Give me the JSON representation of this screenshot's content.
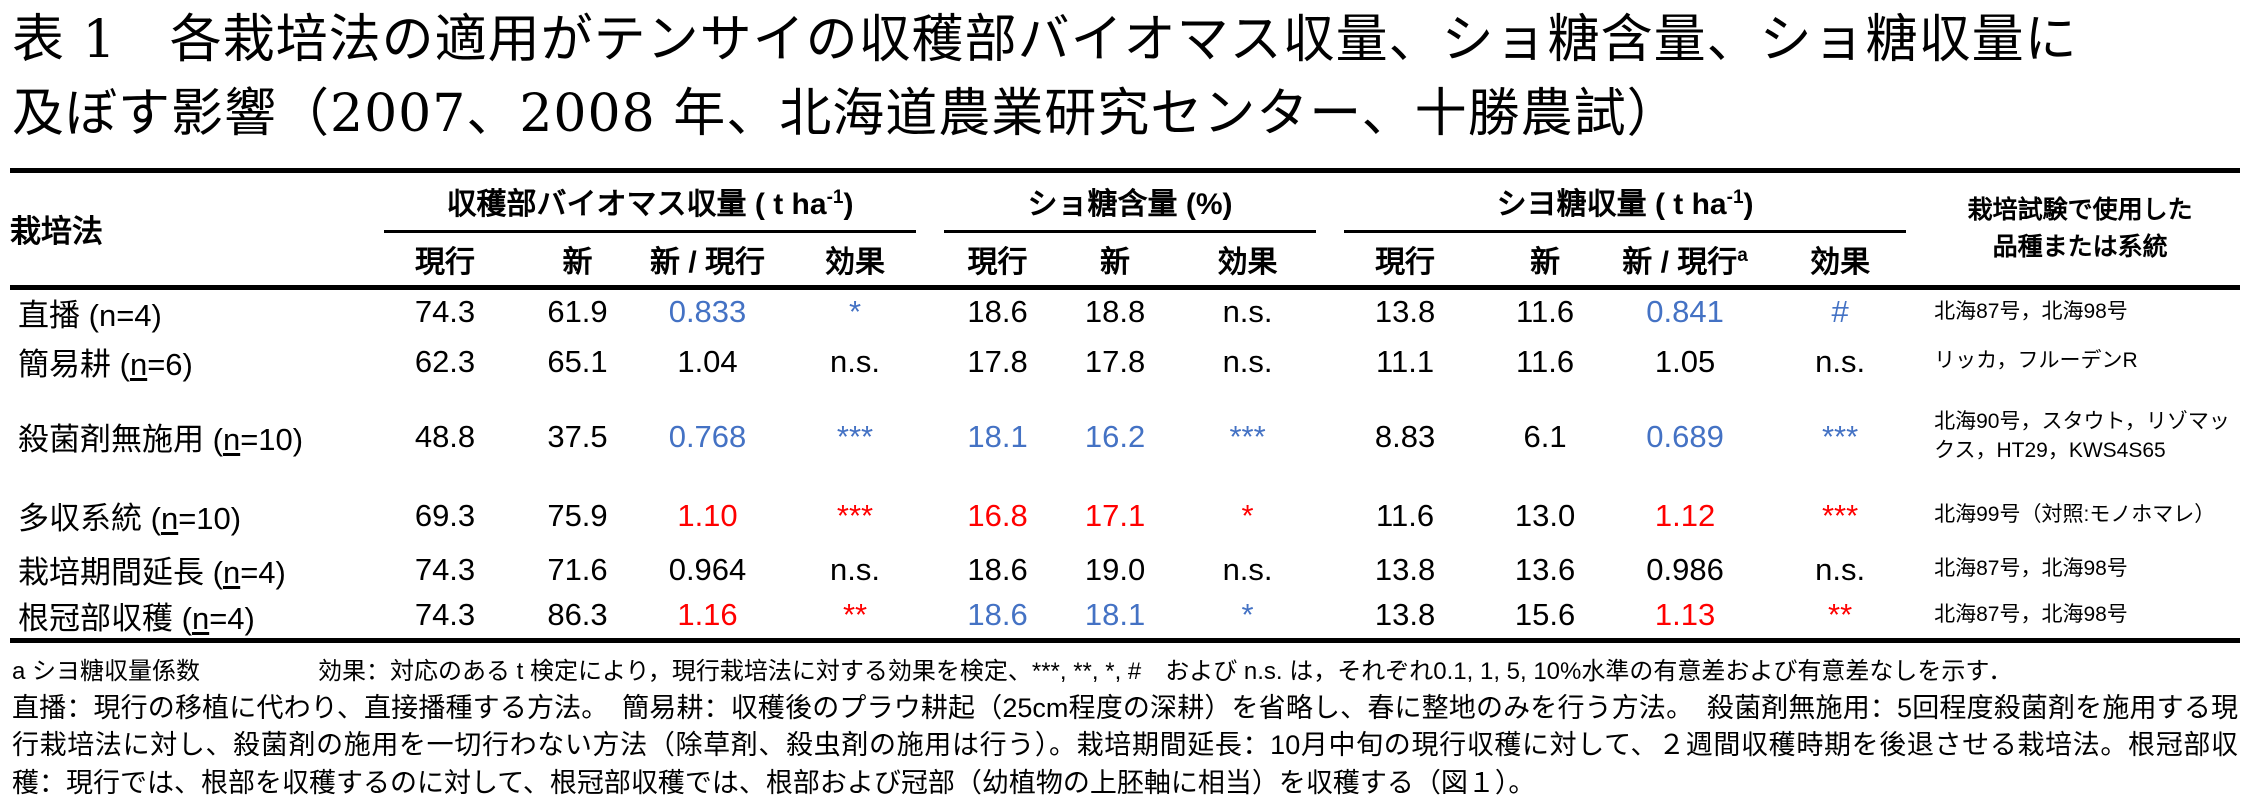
{
  "colors": {
    "blue": "#4472C4",
    "red": "#FF0000",
    "text": "#000000",
    "background": "#FFFFFF"
  },
  "title": {
    "line1": "表 1　各栽培法の適用がテンサイの収穫部バイオマス収量、ショ糖含量、ショ糖収量に",
    "line2": "及ぼす影響（2007、2008 年、北海道農業研究センター、十勝農試）"
  },
  "table": {
    "method_header": "栽培法",
    "groups": [
      {
        "label": "収穫部バイオマス収量 ( t  ha",
        "sup": "-1",
        "close": ")"
      },
      {
        "label": "ショ糖含量 (%)",
        "sup": "",
        "close": ""
      },
      {
        "label": "シヨ糖収量 ( t  ha",
        "sup": "-1",
        "close": ")"
      }
    ],
    "sub": [
      {
        "t": "現行"
      },
      {
        "t": "新"
      },
      {
        "t": "新 / 現行"
      },
      {
        "t": "効果"
      },
      {
        "t": "現行"
      },
      {
        "t": "新"
      },
      {
        "t": "効果"
      },
      {
        "t": "現行"
      },
      {
        "t": "新"
      },
      {
        "t": "新 / 現行",
        "sup": "a"
      },
      {
        "t": "効果"
      }
    ],
    "cultivar_header": {
      "line1": "栽培試験で使用した",
      "line2": "品種または系統"
    },
    "rows": [
      {
        "method_pre": "直播 (",
        "method_n": "n",
        "method_post": "=4)",
        "n_underlined": false,
        "cells": [
          {
            "v": "74.3"
          },
          {
            "v": "61.9"
          },
          {
            "v": "0.833",
            "c": "blue"
          },
          {
            "v": "*",
            "c": "blue"
          },
          {
            "v": "18.6"
          },
          {
            "v": "18.8"
          },
          {
            "v": "n.s."
          },
          {
            "v": "13.8"
          },
          {
            "v": "11.6"
          },
          {
            "v": "0.841",
            "c": "blue"
          },
          {
            "v": "#",
            "c": "blue"
          }
        ],
        "cultivar": "北海87号，北海98号"
      },
      {
        "method_pre": "簡易耕 (",
        "method_n": "n",
        "method_post": "=6)",
        "n_underlined": true,
        "cells": [
          {
            "v": "62.3"
          },
          {
            "v": "65.1"
          },
          {
            "v": "1.04"
          },
          {
            "v": "n.s."
          },
          {
            "v": "17.8"
          },
          {
            "v": "17.8"
          },
          {
            "v": "n.s."
          },
          {
            "v": "11.1"
          },
          {
            "v": "11.6"
          },
          {
            "v": "1.05"
          },
          {
            "v": "n.s."
          }
        ],
        "cultivar": "リッカ，フルーデンR"
      },
      {
        "method_pre": "殺菌剤無施用 (",
        "method_n": "n",
        "method_post": "=10)",
        "n_underlined": true,
        "cells": [
          {
            "v": "48.8"
          },
          {
            "v": "37.5"
          },
          {
            "v": "0.768",
            "c": "blue"
          },
          {
            "v": "***",
            "c": "blue"
          },
          {
            "v": "18.1",
            "c": "blue"
          },
          {
            "v": "16.2",
            "c": "blue"
          },
          {
            "v": "***",
            "c": "blue"
          },
          {
            "v": "8.83"
          },
          {
            "v": "6.1"
          },
          {
            "v": "0.689",
            "c": "blue"
          },
          {
            "v": "***",
            "c": "blue"
          }
        ],
        "cultivar": "北海90号，スタウト，リゾマックス，HT29，KWS4S65"
      },
      {
        "method_pre": "多収系統 (",
        "method_n": "n",
        "method_post": "=10)",
        "n_underlined": true,
        "cells": [
          {
            "v": "69.3"
          },
          {
            "v": "75.9"
          },
          {
            "v": "1.10",
            "c": "red"
          },
          {
            "v": "***",
            "c": "red"
          },
          {
            "v": "16.8",
            "c": "red"
          },
          {
            "v": "17.1",
            "c": "red"
          },
          {
            "v": "*",
            "c": "red"
          },
          {
            "v": "11.6"
          },
          {
            "v": "13.0"
          },
          {
            "v": "1.12",
            "c": "red"
          },
          {
            "v": "***",
            "c": "red"
          }
        ],
        "cultivar": "北海99号（対照:モノホマレ）"
      },
      {
        "method_pre": "栽培期間延長 (",
        "method_n": "n",
        "method_post": "=4)",
        "n_underlined": true,
        "cells": [
          {
            "v": "74.3"
          },
          {
            "v": "71.6"
          },
          {
            "v": "0.964"
          },
          {
            "v": "n.s."
          },
          {
            "v": "18.6"
          },
          {
            "v": "19.0"
          },
          {
            "v": "n.s."
          },
          {
            "v": "13.8"
          },
          {
            "v": "13.6"
          },
          {
            "v": "0.986"
          },
          {
            "v": "n.s."
          }
        ],
        "cultivar": "北海87号，北海98号"
      },
      {
        "method_pre": "根冠部収穫 (",
        "method_n": "n",
        "method_post": "=4)",
        "n_underlined": true,
        "cells": [
          {
            "v": "74.3"
          },
          {
            "v": "86.3"
          },
          {
            "v": "1.16",
            "c": "red"
          },
          {
            "v": "**",
            "c": "red"
          },
          {
            "v": "18.6",
            "c": "blue"
          },
          {
            "v": "18.1",
            "c": "blue"
          },
          {
            "v": "*",
            "c": "blue"
          },
          {
            "v": "13.8"
          },
          {
            "v": "15.6"
          },
          {
            "v": "1.13",
            "c": "red"
          },
          {
            "v": "**",
            "c": "red"
          }
        ],
        "cultivar": "北海87号，北海98号"
      }
    ]
  },
  "footnotes": {
    "coef": "a シヨ糖収量係数",
    "effect": "効果：対応のある t 検定により，現行栽培法に対する効果を検定、***, **, *, #　および n.s. は，それぞれ0.1, 1, 5, 10%水準の有意差および有意差なしを示す．",
    "body": "直播：現行の移植に代わり、直接播種する方法。　簡易耕：収穫後のプラウ耕起（25cm程度の深耕）を省略し、春に整地のみを行う方法。　殺菌剤無施用：5回程度殺菌剤を施用する現行栽培法に対し、殺菌剤の施用を一切行わない方法（除草剤、殺虫剤の施用は行う）。栽培期間延長：10月中旬の現行収穫に対して、２週間収穫時期を後退させる栽培法。根冠部収穫：現行では、根部を収穫するのに対して、根冠部収穫では、根部および冠部（幼植物の上胚軸に相当）を収穫する（図１）。"
  }
}
